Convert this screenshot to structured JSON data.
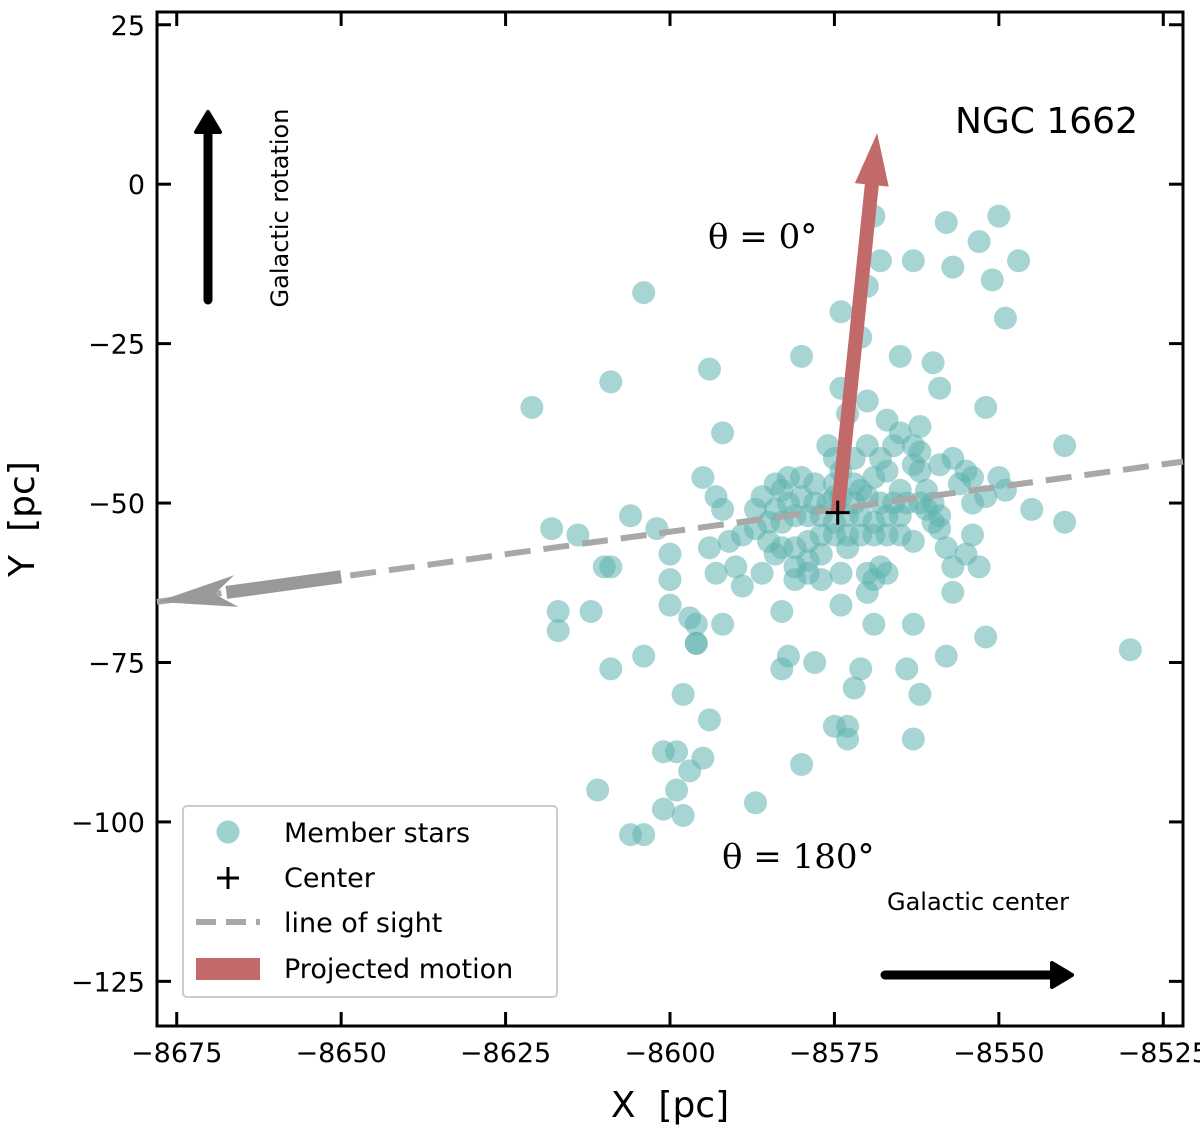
{
  "chart_data": {
    "type": "scatter",
    "title": "NGC 1662",
    "xlabel": "X  [pc]",
    "ylabel": "Y  [pc]",
    "xlim": [
      -8678,
      -8522
    ],
    "ylim": [
      -132,
      27
    ],
    "x_ticks": [
      -8675,
      -8650,
      -8625,
      -8600,
      -8575,
      -8550,
      -8525
    ],
    "x_tick_labels": [
      "−8675",
      "−8650",
      "−8625",
      "−8600",
      "−8575",
      "−8550",
      "−8525"
    ],
    "y_ticks": [
      25,
      0,
      -25,
      -50,
      -75,
      -100,
      -125
    ],
    "y_tick_labels": [
      "25",
      "0",
      "−25",
      "−50",
      "−75",
      "−100",
      "−125"
    ],
    "center": {
      "x": -8574.5,
      "y": -51.5
    },
    "projected_motion_tip": {
      "x": -8568.5,
      "y": 8.0
    },
    "line_of_sight": {
      "from": {
        "x": -8678,
        "y": -65.5
      },
      "to": {
        "x": -8522,
        "y": -43.5
      },
      "solid_arrow_start_x": -8650
    },
    "theta_0_label": "θ = 0°",
    "theta_180_label": "θ = 180°",
    "galactic_rotation_label": "Galactic rotation",
    "galactic_center_label": "Galactic center",
    "colors": {
      "members": "#5fb3ae",
      "motion": "#c26a6a",
      "line_of_sight": "#a8a8a8",
      "los_arrow": "#999999"
    },
    "legend": {
      "placement": "bottom-left",
      "entries": [
        "Member stars",
        "Center",
        "line of sight",
        "Projected motion"
      ]
    },
    "series": [
      {
        "name": "Member stars",
        "points": [
          [
            -8621,
            -35
          ],
          [
            -8604,
            -17
          ],
          [
            -8609,
            -31
          ],
          [
            -8594,
            -29
          ],
          [
            -8592,
            -39
          ],
          [
            -8595,
            -46
          ],
          [
            -8593,
            -49
          ],
          [
            -8592,
            -51
          ],
          [
            -8618,
            -54
          ],
          [
            -8614,
            -55
          ],
          [
            -8606,
            -52
          ],
          [
            -8602,
            -54
          ],
          [
            -8610,
            -60
          ],
          [
            -8609,
            -60
          ],
          [
            -8600,
            -58
          ],
          [
            -8600,
            -62
          ],
          [
            -8594,
            -57
          ],
          [
            -8593,
            -61
          ],
          [
            -8590,
            -60
          ],
          [
            -8589,
            -63
          ],
          [
            -8617,
            -67
          ],
          [
            -8612,
            -67
          ],
          [
            -8617,
            -70
          ],
          [
            -8600,
            -66
          ],
          [
            -8597,
            -68
          ],
          [
            -8596,
            -69
          ],
          [
            -8592,
            -69
          ],
          [
            -8596,
            -72
          ],
          [
            -8596,
            -72
          ],
          [
            -8609,
            -76
          ],
          [
            -8604,
            -74
          ],
          [
            -8598,
            -80
          ],
          [
            -8594,
            -84
          ],
          [
            -8599,
            -89
          ],
          [
            -8601,
            -89
          ],
          [
            -8597,
            -92
          ],
          [
            -8595,
            -90
          ],
          [
            -8599,
            -95
          ],
          [
            -8601,
            -98
          ],
          [
            -8598,
            -99
          ],
          [
            -8611,
            -95
          ],
          [
            -8606,
            -102
          ],
          [
            -8604,
            -102
          ],
          [
            -8587,
            -97
          ],
          [
            -8582,
            -74
          ],
          [
            -8583,
            -76
          ],
          [
            -8580,
            -91
          ],
          [
            -8578,
            -75
          ],
          [
            -8574,
            -66
          ],
          [
            -8575,
            -85
          ],
          [
            -8573,
            -87
          ],
          [
            -8573,
            -85
          ],
          [
            -8572,
            -79
          ],
          [
            -8571,
            -76
          ],
          [
            -8569,
            -69
          ],
          [
            -8567,
            -61
          ],
          [
            -8563,
            -69
          ],
          [
            -8562,
            -80
          ],
          [
            -8563,
            -87
          ],
          [
            -8564,
            -76
          ],
          [
            -8558,
            -74
          ],
          [
            -8552,
            -71
          ],
          [
            -8530,
            -73
          ],
          [
            -8540,
            -53
          ],
          [
            -8540,
            -41
          ],
          [
            -8545,
            -51
          ],
          [
            -8549,
            -48
          ],
          [
            -8550,
            -46
          ],
          [
            -8552,
            -49
          ],
          [
            -8554,
            -50
          ],
          [
            -8554,
            -55
          ],
          [
            -8555,
            -58
          ],
          [
            -8553,
            -60
          ],
          [
            -8557,
            -64
          ],
          [
            -8557,
            -60
          ],
          [
            -8558,
            -57
          ],
          [
            -8559,
            -54
          ],
          [
            -8559,
            -52
          ],
          [
            -8560,
            -53
          ],
          [
            -8560,
            -50
          ],
          [
            -8561,
            -48
          ],
          [
            -8562,
            -45
          ],
          [
            -8563,
            -44
          ],
          [
            -8563,
            -41
          ],
          [
            -8565,
            -39
          ],
          [
            -8567,
            -37
          ],
          [
            -8562,
            -38
          ],
          [
            -8562,
            -42
          ],
          [
            -8559,
            -44
          ],
          [
            -8557,
            -43
          ],
          [
            -8555,
            -45
          ],
          [
            -8556,
            -47
          ],
          [
            -8554,
            -46
          ],
          [
            -8560,
            -28
          ],
          [
            -8559,
            -32
          ],
          [
            -8552,
            -35
          ],
          [
            -8549,
            -21
          ],
          [
            -8551,
            -15
          ],
          [
            -8550,
            -5
          ],
          [
            -8553,
            -9
          ],
          [
            -8557,
            -13
          ],
          [
            -8558,
            -6
          ],
          [
            -8547,
            -12
          ],
          [
            -8563,
            -12
          ],
          [
            -8568,
            -12
          ],
          [
            -8569,
            -5
          ],
          [
            -8570,
            -16
          ],
          [
            -8574,
            -20
          ],
          [
            -8571,
            -24
          ],
          [
            -8565,
            -27
          ],
          [
            -8574,
            -32
          ],
          [
            -8573,
            -36
          ],
          [
            -8570,
            -34
          ],
          [
            -8580,
            -27
          ],
          [
            -8576,
            -41
          ],
          [
            -8575,
            -43
          ],
          [
            -8574,
            -45
          ],
          [
            -8572,
            -43
          ],
          [
            -8570,
            -41
          ],
          [
            -8568,
            -43
          ],
          [
            -8566,
            -41
          ],
          [
            -8567,
            -45
          ],
          [
            -8569,
            -46
          ],
          [
            -8572,
            -47
          ],
          [
            -8575,
            -47
          ],
          [
            -8578,
            -47
          ],
          [
            -8580,
            -46
          ],
          [
            -8582,
            -46
          ],
          [
            -8584,
            -47
          ],
          [
            -8586,
            -49
          ],
          [
            -8584,
            -51
          ],
          [
            -8582,
            -50
          ],
          [
            -8580,
            -49
          ],
          [
            -8578,
            -50
          ],
          [
            -8576,
            -50
          ],
          [
            -8574,
            -49
          ],
          [
            -8572,
            -50
          ],
          [
            -8570,
            -49
          ],
          [
            -8568,
            -50
          ],
          [
            -8566,
            -50
          ],
          [
            -8564,
            -50
          ],
          [
            -8562,
            -50
          ],
          [
            -8561,
            -51
          ],
          [
            -8565,
            -52
          ],
          [
            -8567,
            -52
          ],
          [
            -8569,
            -53
          ],
          [
            -8571,
            -52
          ],
          [
            -8573,
            -52
          ],
          [
            -8575,
            -53
          ],
          [
            -8577,
            -52
          ],
          [
            -8579,
            -52
          ],
          [
            -8581,
            -52
          ],
          [
            -8583,
            -53
          ],
          [
            -8585,
            -53
          ],
          [
            -8587,
            -54
          ],
          [
            -8589,
            -55
          ],
          [
            -8591,
            -56
          ],
          [
            -8585,
            -56
          ],
          [
            -8583,
            -57
          ],
          [
            -8581,
            -57
          ],
          [
            -8579,
            -56
          ],
          [
            -8577,
            -55
          ],
          [
            -8575,
            -55
          ],
          [
            -8573,
            -55
          ],
          [
            -8571,
            -55
          ],
          [
            -8569,
            -55
          ],
          [
            -8567,
            -55
          ],
          [
            -8565,
            -55
          ],
          [
            -8563,
            -56
          ],
          [
            -8577,
            -58
          ],
          [
            -8579,
            -59
          ],
          [
            -8581,
            -60
          ],
          [
            -8579,
            -61
          ],
          [
            -8581,
            -62
          ],
          [
            -8577,
            -62
          ],
          [
            -8574,
            -61
          ],
          [
            -8570,
            -61
          ],
          [
            -8568,
            -60
          ],
          [
            -8569,
            -62
          ],
          [
            -8570,
            -64
          ],
          [
            -8584,
            -58
          ],
          [
            -8586,
            -61
          ],
          [
            -8583,
            -67
          ],
          [
            -8575,
            -49
          ],
          [
            -8583,
            -48
          ],
          [
            -8571,
            -48
          ],
          [
            -8565,
            -48
          ],
          [
            -8587,
            -51
          ],
          [
            -8573,
            -57
          ]
        ]
      }
    ]
  }
}
